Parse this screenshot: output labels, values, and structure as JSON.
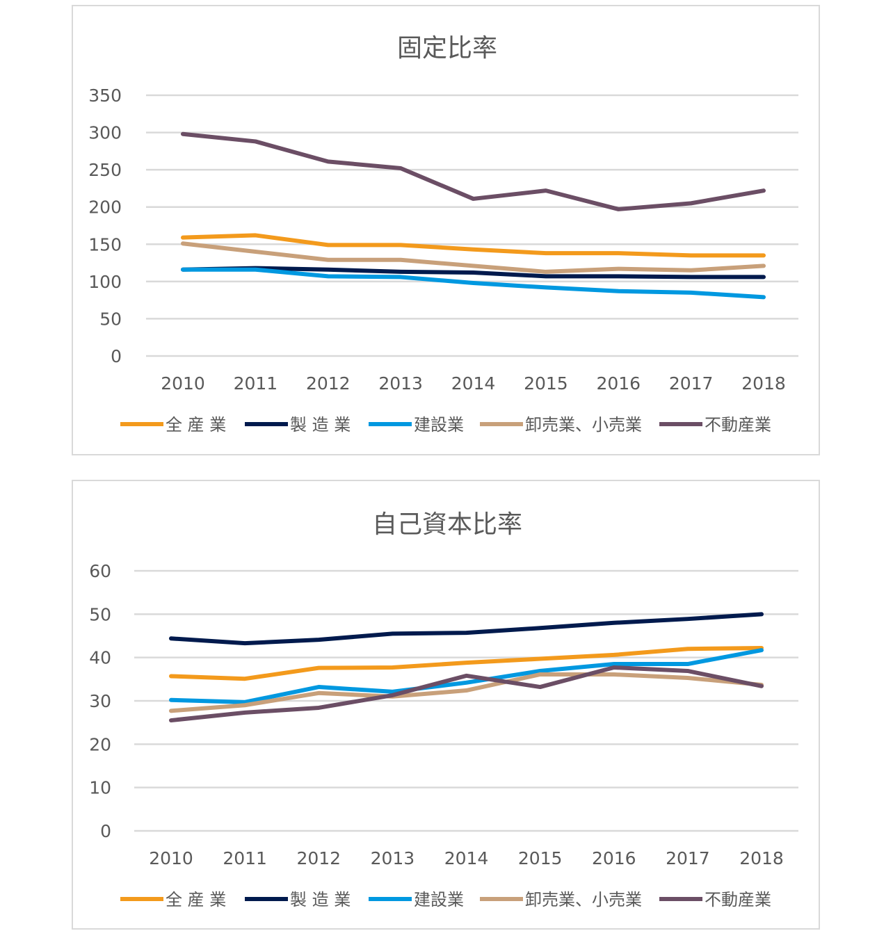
{
  "chart_data": [
    {
      "type": "line",
      "title": "固定比率",
      "categories": [
        "2010",
        "2011",
        "2012",
        "2013",
        "2014",
        "2015",
        "2016",
        "2017",
        "2018"
      ],
      "ylim": [
        0,
        350
      ],
      "yticks": [
        0,
        50,
        100,
        150,
        200,
        250,
        300,
        350
      ],
      "grid": true,
      "legend_position": "bottom",
      "series": [
        {
          "name": "全 産 業",
          "color": "#F39A1C",
          "values": [
            159,
            162,
            149,
            149,
            143,
            138,
            138,
            135,
            135
          ]
        },
        {
          "name": "製 造 業",
          "color": "#001A4D",
          "values": [
            116,
            118,
            116,
            113,
            112,
            107,
            107,
            106,
            106
          ]
        },
        {
          "name": "建設業",
          "color": "#0098E0",
          "values": [
            116,
            116,
            107,
            106,
            98,
            92,
            87,
            85,
            79
          ]
        },
        {
          "name": "卸売業、小売業",
          "color": "#C8A07A",
          "values": [
            151,
            140,
            129,
            129,
            121,
            113,
            117,
            115,
            121
          ]
        },
        {
          "name": "不動産業",
          "color": "#6B4E65",
          "values": [
            298,
            288,
            261,
            252,
            211,
            222,
            197,
            205,
            222
          ]
        }
      ]
    },
    {
      "type": "line",
      "title": "自己資本比率",
      "categories": [
        "2010",
        "2011",
        "2012",
        "2013",
        "2014",
        "2015",
        "2016",
        "2017",
        "2018"
      ],
      "ylim": [
        0,
        60
      ],
      "yticks": [
        0,
        10,
        20,
        30,
        40,
        50,
        60
      ],
      "grid": true,
      "legend_position": "bottom",
      "series": [
        {
          "name": "全 産 業",
          "color": "#F39A1C",
          "values": [
            35.7,
            35.1,
            37.6,
            37.7,
            38.8,
            39.7,
            40.6,
            42.0,
            42.2
          ]
        },
        {
          "name": "製 造 業",
          "color": "#001A4D",
          "values": [
            44.4,
            43.3,
            44.1,
            45.5,
            45.7,
            46.8,
            48.0,
            48.9,
            50.0
          ]
        },
        {
          "name": "建設業",
          "color": "#0098E0",
          "values": [
            30.2,
            29.7,
            33.2,
            32.1,
            34.2,
            36.9,
            38.5,
            38.5,
            41.7
          ]
        },
        {
          "name": "卸売業、小売業",
          "color": "#C8A07A",
          "values": [
            27.7,
            29.0,
            31.8,
            31.0,
            32.4,
            36.1,
            36.1,
            35.3,
            33.7
          ]
        },
        {
          "name": "不動産業",
          "color": "#6B4E65",
          "values": [
            25.5,
            27.3,
            28.4,
            31.3,
            35.8,
            33.2,
            37.7,
            36.9,
            33.4
          ]
        }
      ]
    }
  ]
}
